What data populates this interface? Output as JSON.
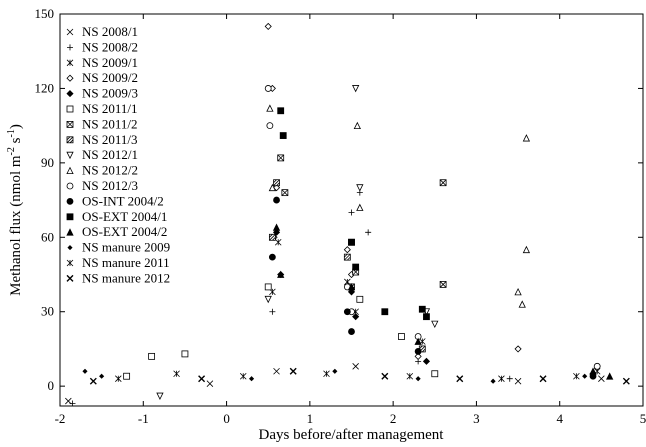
{
  "chart_data": {
    "type": "scatter",
    "title": "",
    "xlabel": "Days before/after management",
    "ylabel_main": "Methanol flux (nmol m",
    "ylabel_sup1": "-2",
    "ylabel_mid": " s",
    "ylabel_sup2": "-1",
    "ylabel_end": ")",
    "xlim": [
      -2,
      5
    ],
    "ylim": [
      -8,
      150
    ],
    "x_ticks": [
      -2,
      -1,
      0,
      1,
      2,
      3,
      4,
      5
    ],
    "y_ticks": [
      0,
      30,
      60,
      90,
      120,
      150
    ],
    "grid": false,
    "legend_position": "top-left",
    "series": [
      {
        "name": "NS 2008/1",
        "marker": "x",
        "points": [
          [
            -1.9,
            -6
          ],
          [
            -0.2,
            1
          ],
          [
            0.6,
            6
          ],
          [
            1.55,
            8
          ],
          [
            3.5,
            2
          ],
          [
            4.5,
            3
          ]
        ]
      },
      {
        "name": "NS 2008/2",
        "marker": "plus",
        "points": [
          [
            -1.85,
            -7
          ],
          [
            0.55,
            30
          ],
          [
            1.5,
            70
          ],
          [
            1.6,
            78
          ],
          [
            1.7,
            62
          ],
          [
            2.3,
            10
          ],
          [
            3.4,
            3
          ]
        ]
      },
      {
        "name": "NS 2009/1",
        "marker": "star",
        "points": [
          [
            0.55,
            38
          ],
          [
            0.62,
            58
          ],
          [
            1.45,
            42
          ],
          [
            1.55,
            30
          ],
          [
            2.35,
            18
          ],
          [
            4.45,
            6
          ]
        ]
      },
      {
        "name": "NS 2009/2",
        "marker": "diamond-open",
        "points": [
          [
            0.5,
            145
          ],
          [
            0.55,
            120
          ],
          [
            0.6,
            80
          ],
          [
            0.57,
            60
          ],
          [
            1.45,
            55
          ],
          [
            1.5,
            45
          ],
          [
            2.3,
            12
          ],
          [
            3.5,
            15
          ]
        ]
      },
      {
        "name": "NS 2009/3",
        "marker": "diamond-filled",
        "points": [
          [
            0.6,
            62
          ],
          [
            0.65,
            45
          ],
          [
            1.5,
            38
          ],
          [
            1.55,
            28
          ],
          [
            2.4,
            10
          ],
          [
            4.4,
            5
          ]
        ]
      },
      {
        "name": "NS 2011/1",
        "marker": "square-open",
        "points": [
          [
            -1.2,
            4
          ],
          [
            -0.9,
            12
          ],
          [
            -0.5,
            13
          ],
          [
            0.5,
            40
          ],
          [
            1.6,
            35
          ],
          [
            2.1,
            20
          ],
          [
            2.5,
            5
          ]
        ]
      },
      {
        "name": "NS 2011/2",
        "marker": "square-x",
        "points": [
          [
            0.65,
            92
          ],
          [
            0.7,
            78
          ],
          [
            1.5,
            58
          ],
          [
            1.55,
            46
          ],
          [
            2.6,
            82
          ],
          [
            2.6,
            41
          ]
        ]
      },
      {
        "name": "NS 2011/3",
        "marker": "square-hatch",
        "points": [
          [
            0.6,
            82
          ],
          [
            0.55,
            60
          ],
          [
            1.45,
            52
          ],
          [
            1.5,
            40
          ],
          [
            2.35,
            15
          ]
        ]
      },
      {
        "name": "NS 2012/1",
        "marker": "triangle-down",
        "points": [
          [
            -0.8,
            -4
          ],
          [
            0.5,
            35
          ],
          [
            1.55,
            120
          ],
          [
            1.6,
            80
          ],
          [
            2.4,
            30
          ],
          [
            2.5,
            25
          ]
        ]
      },
      {
        "name": "NS 2012/2",
        "marker": "triangle-open",
        "points": [
          [
            0.52,
            112
          ],
          [
            0.55,
            80
          ],
          [
            1.57,
            105
          ],
          [
            1.6,
            72
          ],
          [
            3.5,
            38
          ],
          [
            3.6,
            100
          ],
          [
            3.6,
            55
          ],
          [
            3.55,
            33
          ]
        ]
      },
      {
        "name": "NS 2012/3",
        "marker": "circle-open",
        "points": [
          [
            0.5,
            120
          ],
          [
            0.52,
            105
          ],
          [
            1.45,
            40
          ],
          [
            1.5,
            30
          ],
          [
            2.3,
            20
          ],
          [
            4.45,
            8
          ]
        ]
      },
      {
        "name": "OS-INT 2004/2",
        "marker": "circle-filled",
        "points": [
          [
            0.6,
            75
          ],
          [
            0.55,
            52
          ],
          [
            1.45,
            30
          ],
          [
            1.5,
            22
          ],
          [
            2.3,
            14
          ],
          [
            4.4,
            4
          ]
        ]
      },
      {
        "name": "OS-EXT 2004/1",
        "marker": "square-filled",
        "points": [
          [
            0.65,
            111
          ],
          [
            0.68,
            101
          ],
          [
            1.5,
            58
          ],
          [
            1.55,
            48
          ],
          [
            1.9,
            30
          ],
          [
            2.35,
            31
          ],
          [
            2.4,
            28
          ]
        ]
      },
      {
        "name": "OS-EXT 2004/2",
        "marker": "triangle-filled",
        "points": [
          [
            0.6,
            64
          ],
          [
            0.65,
            45
          ],
          [
            1.5,
            40
          ],
          [
            2.3,
            18
          ],
          [
            4.4,
            6
          ],
          [
            4.6,
            4
          ]
        ]
      },
      {
        "name": "NS manure 2009",
        "marker": "diamond-small",
        "points": [
          [
            -1.7,
            6
          ],
          [
            -1.5,
            4
          ],
          [
            0.3,
            3
          ],
          [
            1.3,
            6
          ],
          [
            2.3,
            3
          ],
          [
            3.2,
            2
          ],
          [
            4.3,
            4
          ]
        ]
      },
      {
        "name": "NS manure 2011",
        "marker": "asterisk",
        "points": [
          [
            -1.3,
            3
          ],
          [
            -0.6,
            5
          ],
          [
            0.2,
            4
          ],
          [
            1.2,
            5
          ],
          [
            2.2,
            4
          ],
          [
            3.3,
            3
          ],
          [
            4.2,
            4
          ]
        ]
      },
      {
        "name": "NS manure 2012",
        "marker": "x-bold",
        "points": [
          [
            -1.6,
            2
          ],
          [
            -0.3,
            3
          ],
          [
            0.8,
            6
          ],
          [
            1.9,
            4
          ],
          [
            2.8,
            3
          ],
          [
            3.8,
            3
          ],
          [
            4.8,
            2
          ]
        ]
      }
    ]
  }
}
